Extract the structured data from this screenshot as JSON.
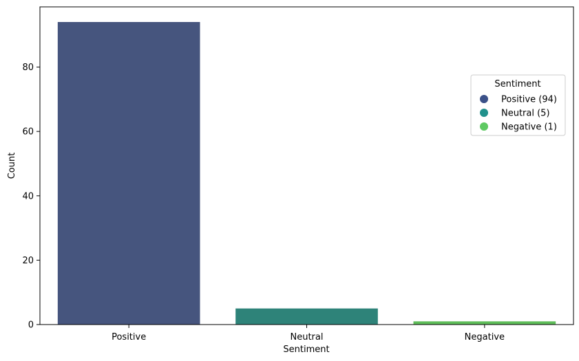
{
  "chart_data": {
    "type": "bar",
    "categories": [
      "Positive",
      "Neutral",
      "Negative"
    ],
    "values": [
      94,
      5,
      1
    ],
    "colors": [
      "#46557e",
      "#2e8379",
      "#5fbe5a"
    ],
    "xlabel": "Sentiment",
    "ylabel": "Count",
    "ylim": [
      0,
      98.7
    ],
    "yticks": [
      0,
      20,
      40,
      60,
      80
    ],
    "grid": false,
    "legend": {
      "title": "Sentiment",
      "placement": "right",
      "entries": [
        {
          "label": "Positive (94)",
          "color": "#3b5189"
        },
        {
          "label": "Neutral (5)",
          "color": "#21918c"
        },
        {
          "label": "Negative (1)",
          "color": "#5ec962"
        }
      ]
    }
  }
}
